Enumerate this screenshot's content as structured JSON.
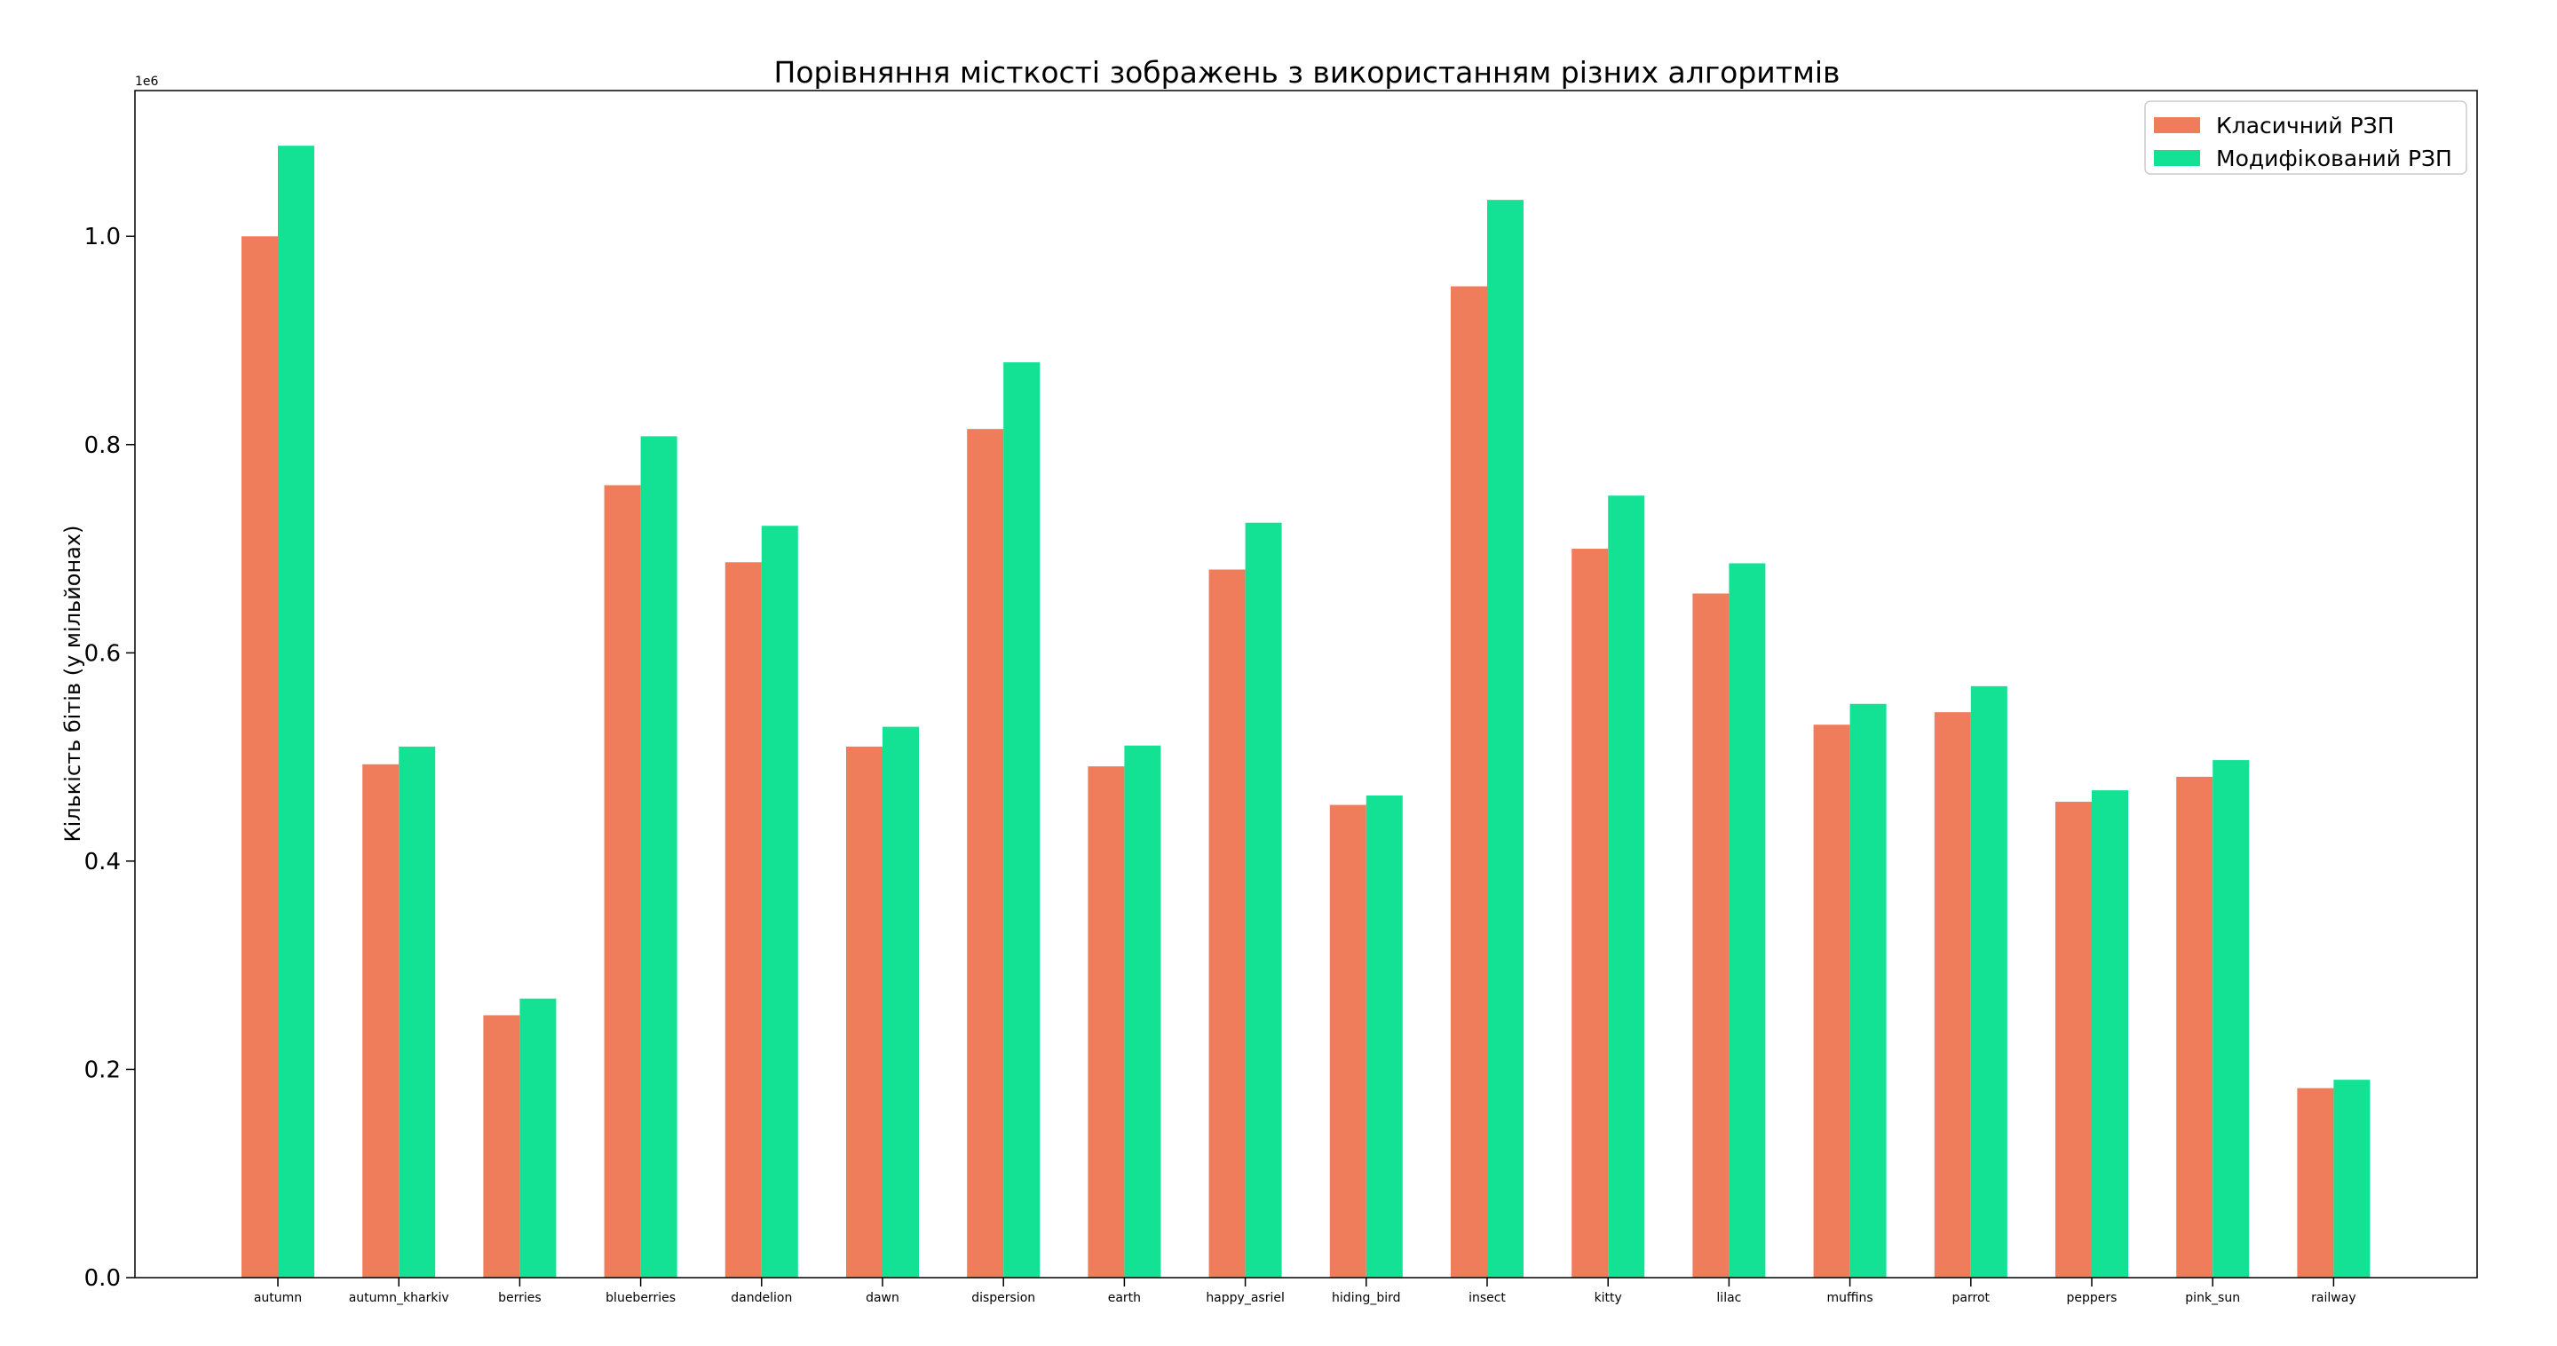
{
  "chart_data": {
    "type": "bar",
    "title": "Порівняння місткості зображень з використанням різних алгоритмів",
    "xlabel": "",
    "ylabel": "Кількість бітів (у мільйонах)",
    "y_offset_label": "1e6",
    "ylim": [
      0,
      1.14
    ],
    "yticks": [
      0.0,
      0.2,
      0.4,
      0.6,
      0.8,
      1.0
    ],
    "grid": false,
    "legend_position": "top-right",
    "categories": [
      "autumn",
      "autumn_kharkiv",
      "berries",
      "blueberries",
      "dandelion",
      "dawn",
      "dispersion",
      "earth",
      "happy_asriel",
      "hiding_bird",
      "insect",
      "kitty",
      "lilac",
      "muffins",
      "parrot",
      "peppers",
      "pink_sun",
      "railway"
    ],
    "series": [
      {
        "name": "Класичний РЗП",
        "color": "#ef7d5c",
        "values": [
          1.0,
          0.493,
          0.252,
          0.761,
          0.687,
          0.51,
          0.815,
          0.491,
          0.68,
          0.454,
          0.952,
          0.7,
          0.657,
          0.531,
          0.543,
          0.457,
          0.481,
          0.182
        ]
      },
      {
        "name": "Модифікований РЗП",
        "color": "#13e193",
        "values": [
          1.087,
          0.51,
          0.268,
          0.808,
          0.722,
          0.529,
          0.879,
          0.511,
          0.725,
          0.463,
          1.035,
          0.751,
          0.686,
          0.551,
          0.568,
          0.468,
          0.497,
          0.19
        ]
      }
    ]
  }
}
